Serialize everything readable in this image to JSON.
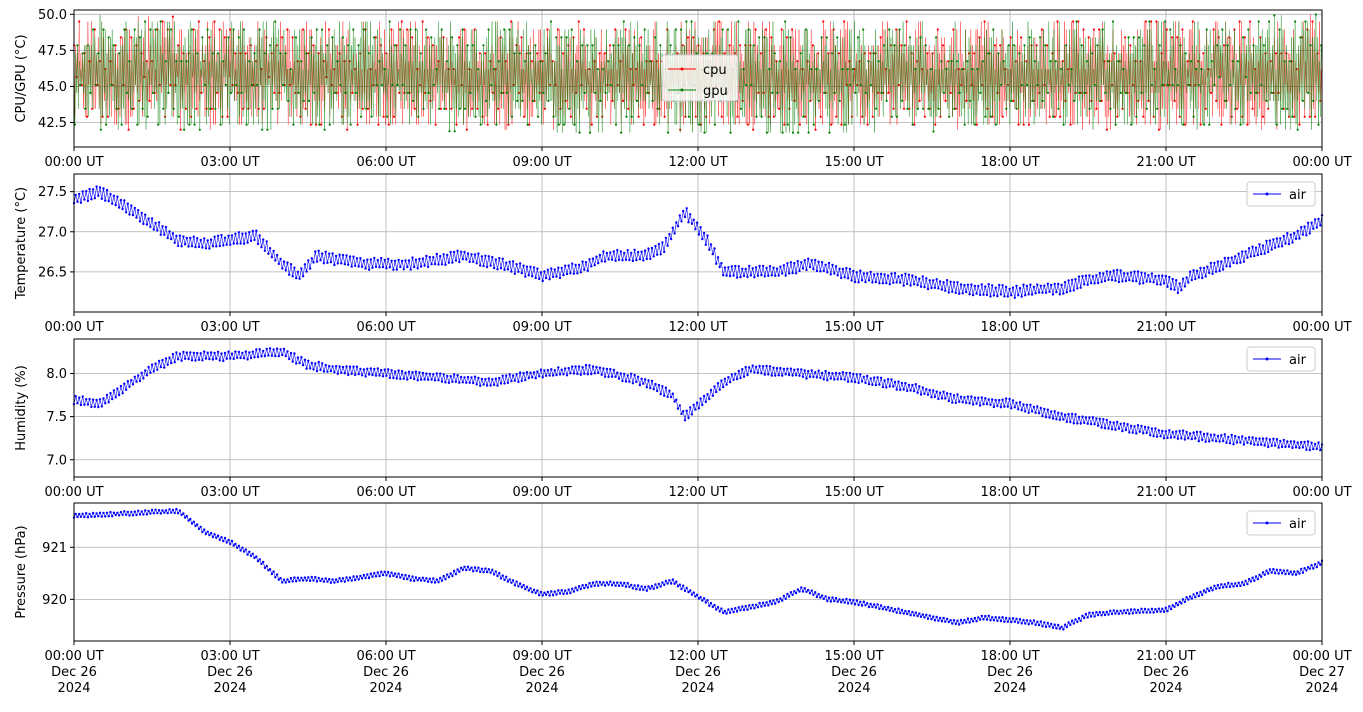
{
  "colors": {
    "cpu": "#ff0000",
    "gpu": "#008000",
    "air": "#0000ff",
    "grid": "#b0b0b0"
  },
  "xaxis": {
    "ticks": [
      "00:00 UT",
      "03:00 UT",
      "06:00 UT",
      "09:00 UT",
      "12:00 UT",
      "15:00 UT",
      "18:00 UT",
      "21:00 UT",
      "00:00 UT"
    ],
    "date_lines": [
      [
        "Dec 26",
        "2024"
      ],
      [
        "Dec 26",
        "2024"
      ],
      [
        "Dec 26",
        "2024"
      ],
      [
        "Dec 26",
        "2024"
      ],
      [
        "Dec 26",
        "2024"
      ],
      [
        "Dec 26",
        "2024"
      ],
      [
        "Dec 26",
        "2024"
      ],
      [
        "Dec 26",
        "2024"
      ],
      [
        "Dec 27",
        "2024"
      ]
    ]
  },
  "chart_data": [
    {
      "type": "line",
      "ylabel": "CPU/GPU (°C)",
      "ylim": [
        40.8,
        50.3
      ],
      "yticks": [
        "42.5",
        "45.0",
        "47.5",
        "50.0"
      ],
      "ytick_values": [
        42.5,
        45.0,
        47.5,
        50.0
      ],
      "grid": true,
      "legend": "upper-center",
      "x_range": [
        "2024-12-26 00:00 UT",
        "2024-12-27 00:00 UT"
      ],
      "series": [
        {
          "name": "cpu",
          "color": "#ff0000",
          "marker": "dot",
          "kind": "rapid oscillation",
          "x": [
            "00:00",
            "06:00",
            "12:00",
            "18:00",
            "24:00"
          ],
          "y_min": [
            42.0,
            42.0,
            42.0,
            42.0,
            42.0
          ],
          "y_max": [
            50.0,
            49.5,
            49.5,
            49.5,
            50.0
          ]
        },
        {
          "name": "gpu",
          "color": "#008000",
          "marker": "dot",
          "kind": "rapid oscillation",
          "x": [
            "00:00",
            "06:00",
            "12:00",
            "18:00",
            "24:00"
          ],
          "y_min": [
            42.0,
            42.0,
            41.5,
            42.0,
            42.0
          ],
          "y_max": [
            50.0,
            49.5,
            49.5,
            49.5,
            50.0
          ]
        }
      ]
    },
    {
      "type": "line",
      "ylabel": "Temperature (°C)",
      "ylim": [
        26.0,
        27.72
      ],
      "yticks": [
        "26.5",
        "27.0",
        "27.5"
      ],
      "ytick_values": [
        26.5,
        27.0,
        27.5
      ],
      "grid": true,
      "legend": "upper-right",
      "series": [
        {
          "name": "air",
          "color": "#0000ff",
          "marker": "dot",
          "noise": 0.07,
          "x": [
            "00:00",
            "00:30",
            "01:00",
            "01:30",
            "02:00",
            "02:30",
            "03:00",
            "03:30",
            "04:00",
            "04:20",
            "04:40",
            "05:30",
            "06:30",
            "07:30",
            "08:30",
            "09:00",
            "09:45",
            "10:15",
            "11:00",
            "11:20",
            "11:45",
            "12:10",
            "12:30",
            "13:30",
            "14:10",
            "15:00",
            "16:00",
            "17:00",
            "18:00",
            "19:00",
            "19:30",
            "20:00",
            "21:00",
            "21:15",
            "21:30",
            "22:30",
            "23:30",
            "24:00"
          ],
          "y": [
            27.4,
            27.5,
            27.3,
            27.1,
            26.9,
            26.85,
            26.9,
            26.95,
            26.6,
            26.45,
            26.7,
            26.6,
            26.6,
            26.7,
            26.55,
            26.45,
            26.55,
            26.7,
            26.7,
            26.8,
            27.25,
            26.9,
            26.5,
            26.5,
            26.6,
            26.45,
            26.4,
            26.3,
            26.25,
            26.3,
            26.4,
            26.45,
            26.4,
            26.3,
            26.45,
            26.7,
            26.95,
            27.15
          ]
        }
      ]
    },
    {
      "type": "line",
      "ylabel": "Humidity (%)",
      "ylim": [
        6.8,
        8.4
      ],
      "yticks": [
        "7.0",
        "7.5",
        "8.0"
      ],
      "ytick_values": [
        7.0,
        7.5,
        8.0
      ],
      "grid": true,
      "legend": "upper-right",
      "series": [
        {
          "name": "air",
          "color": "#0000ff",
          "marker": "dot",
          "noise": 0.05,
          "x": [
            "00:00",
            "00:30",
            "01:00",
            "01:30",
            "02:00",
            "03:00",
            "04:00",
            "04:30",
            "05:00",
            "06:00",
            "07:00",
            "08:00",
            "09:00",
            "10:00",
            "11:00",
            "11:30",
            "11:45",
            "12:30",
            "13:00",
            "14:00",
            "15:00",
            "16:00",
            "17:00",
            "18:00",
            "19:00",
            "20:00",
            "21:00",
            "22:00",
            "23:00",
            "24:00"
          ],
          "y": [
            7.7,
            7.65,
            7.85,
            8.05,
            8.2,
            8.2,
            8.25,
            8.1,
            8.05,
            8.0,
            7.95,
            7.9,
            8.0,
            8.05,
            7.9,
            7.75,
            7.5,
            7.9,
            8.05,
            8.0,
            7.95,
            7.85,
            7.7,
            7.65,
            7.5,
            7.4,
            7.3,
            7.25,
            7.2,
            7.15
          ]
        }
      ]
    },
    {
      "type": "line",
      "ylabel": "Pressure (hPa)",
      "ylim": [
        919.2,
        921.85
      ],
      "yticks": [
        "920",
        "921"
      ],
      "ytick_values": [
        920,
        921
      ],
      "grid": true,
      "legend": "upper-right",
      "series": [
        {
          "name": "air",
          "color": "#0000ff",
          "marker": "dot",
          "noise": 0.04,
          "x": [
            "00:00",
            "01:00",
            "02:00",
            "02:30",
            "03:00",
            "03:30",
            "04:00",
            "04:30",
            "05:00",
            "06:00",
            "06:30",
            "07:00",
            "07:30",
            "08:00",
            "08:30",
            "09:00",
            "09:30",
            "10:00",
            "10:30",
            "11:00",
            "11:30",
            "12:00",
            "12:30",
            "13:00",
            "13:30",
            "14:00",
            "14:30",
            "15:00",
            "15:30",
            "16:00",
            "16:30",
            "17:00",
            "17:30",
            "18:00",
            "18:30",
            "19:00",
            "19:30",
            "20:00",
            "21:00",
            "21:30",
            "22:00",
            "22:30",
            "23:00",
            "23:30",
            "24:00"
          ],
          "y": [
            921.6,
            921.65,
            921.7,
            921.3,
            921.1,
            920.8,
            920.35,
            920.4,
            920.35,
            920.5,
            920.4,
            920.35,
            920.6,
            920.55,
            920.3,
            920.1,
            920.15,
            920.3,
            920.3,
            920.2,
            920.35,
            920.05,
            919.75,
            919.85,
            919.95,
            920.2,
            920.0,
            919.95,
            919.85,
            919.75,
            919.65,
            919.55,
            919.65,
            919.6,
            919.55,
            919.45,
            919.7,
            919.75,
            919.8,
            920.05,
            920.25,
            920.3,
            920.55,
            920.5,
            920.7
          ]
        }
      ]
    }
  ]
}
